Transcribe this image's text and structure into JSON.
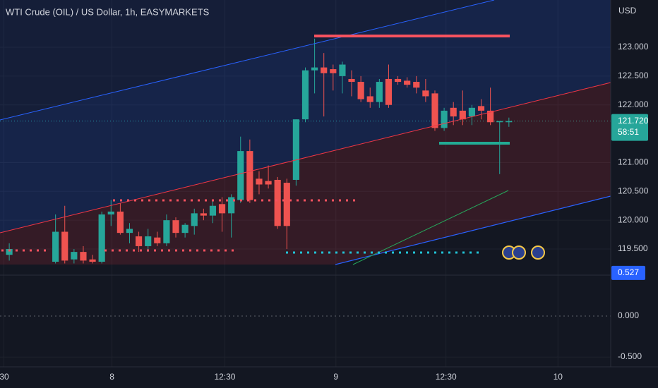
{
  "chart_data": {
    "type": "candlestick",
    "title": "WTI Crude (OIL) / US Dollar, 1h, EASYMARKETS",
    "currency": "USD",
    "up_color": "#26a69a",
    "down_color": "#ef5350",
    "x": [
      0,
      5,
      6,
      7,
      8,
      9,
      10,
      11,
      12,
      13,
      14,
      15,
      16,
      17,
      18,
      19,
      20,
      21,
      22,
      23,
      24,
      25,
      26,
      27,
      28,
      29,
      30,
      31,
      32,
      33,
      34,
      35,
      36,
      37,
      38,
      39,
      40,
      41,
      42,
      43,
      44,
      45,
      46,
      47,
      48,
      49,
      50,
      51,
      52,
      53,
      54
    ],
    "open": [
      119.4,
      119.28,
      119.8,
      119.32,
      119.45,
      119.32,
      119.28,
      120.1,
      120.15,
      119.78,
      119.72,
      119.55,
      119.7,
      119.6,
      120.0,
      119.78,
      119.9,
      120.12,
      120.08,
      120.28,
      120.12,
      120.35,
      121.2,
      120.72,
      120.68,
      120.7,
      120.65,
      120.7,
      121.75,
      122.6,
      122.65,
      122.62,
      122.5,
      122.45,
      122.4,
      122.15,
      122.05,
      122.45,
      122.45,
      122.42,
      122.4,
      122.25,
      122.2,
      121.6,
      121.95,
      121.9,
      121.8,
      121.98,
      121.9,
      121.7,
      121.7
    ],
    "high": [
      119.6,
      120.1,
      120.25,
      119.5,
      119.55,
      119.4,
      120.15,
      120.35,
      120.3,
      119.95,
      119.8,
      119.85,
      119.8,
      120.1,
      120.05,
      119.95,
      120.2,
      120.2,
      120.35,
      120.4,
      120.45,
      121.45,
      121.4,
      120.85,
      120.95,
      120.75,
      120.72,
      121.75,
      122.65,
      123.15,
      122.9,
      122.7,
      122.75,
      122.6,
      122.5,
      122.3,
      122.45,
      122.7,
      122.5,
      122.48,
      122.5,
      122.45,
      122.25,
      121.95,
      122.05,
      122.25,
      122.0,
      122.1,
      122.3,
      121.72,
      121.78
    ],
    "low": [
      119.3,
      119.25,
      119.25,
      119.25,
      119.25,
      119.25,
      119.25,
      119.9,
      119.75,
      119.6,
      119.45,
      119.45,
      119.55,
      119.55,
      119.7,
      119.7,
      119.75,
      120.0,
      119.95,
      119.8,
      119.7,
      120.3,
      120.3,
      120.45,
      120.55,
      119.85,
      119.5,
      120.6,
      121.7,
      122.2,
      121.8,
      122.25,
      122.2,
      122.15,
      122.05,
      121.95,
      121.95,
      121.95,
      122.35,
      122.3,
      122.2,
      122.05,
      121.55,
      121.55,
      121.65,
      121.65,
      121.65,
      121.75,
      121.65,
      120.8,
      121.62
    ],
    "close": [
      119.5,
      119.8,
      119.3,
      119.45,
      119.3,
      119.28,
      120.1,
      120.15,
      119.78,
      119.85,
      119.55,
      119.72,
      119.6,
      120.0,
      119.78,
      119.92,
      120.12,
      120.08,
      120.25,
      120.12,
      120.4,
      121.2,
      120.35,
      120.62,
      120.62,
      119.9,
      119.9,
      121.75,
      122.6,
      122.65,
      122.55,
      122.55,
      122.7,
      122.4,
      122.1,
      122.05,
      122.4,
      122.0,
      122.4,
      122.35,
      122.3,
      122.15,
      121.6,
      121.9,
      121.8,
      121.75,
      121.95,
      121.9,
      121.7,
      121.72,
      121.72
    ],
    "xlim": [
      -1,
      65
    ],
    "xticks": [
      {
        "value": -0.6,
        "label": "30"
      },
      {
        "value": 11.1,
        "label": "8"
      },
      {
        "value": 23.3,
        "label": "12:30"
      },
      {
        "value": 35.3,
        "label": "9"
      },
      {
        "value": 47.2,
        "label": "12:30"
      },
      {
        "value": 59.3,
        "label": "10"
      }
    ],
    "ylim": [
      119.17,
      123.82
    ],
    "yticks": [
      {
        "value": 123,
        "label": "123.000"
      },
      {
        "value": 122.5,
        "label": "122.500"
      },
      {
        "value": 122,
        "label": "122.000"
      },
      {
        "value": 121,
        "label": "121.000"
      },
      {
        "value": 120.5,
        "label": "120.500"
      },
      {
        "value": 120,
        "label": "120.000"
      },
      {
        "value": 119.5,
        "label": "119.500"
      }
    ],
    "last_price": {
      "value": 121.72,
      "label": "121.720"
    },
    "countdown": "58:51",
    "y2lim": [
      -0.62,
      0.586
    ],
    "y2ticks": [
      {
        "value": 0,
        "label": "0.000"
      },
      {
        "value": -0.5,
        "label": "-0.500"
      }
    ],
    "indicator_value": {
      "value": 0.527,
      "label": "0.527"
    }
  }
}
